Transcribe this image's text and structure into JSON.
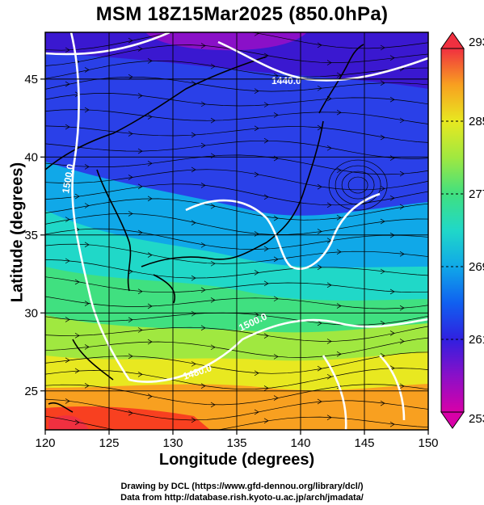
{
  "title": "MSM 18Z15Mar2025 (850.0hPa)",
  "xlabel": "Longitude (degrees)",
  "ylabel": "Latitude  (degrees)",
  "credits": [
    "Drawing by DCL (https://www.gfd-dennou.org/library/dcl/)",
    "Data from http://database.rish.kyoto-u.ac.jp/arch/jmadata/"
  ],
  "map": {
    "lon_range": [
      120,
      150
    ],
    "lat_range": [
      22.5,
      48
    ],
    "lon_ticks": [
      120,
      125,
      130,
      135,
      140,
      145,
      150
    ],
    "lat_ticks": [
      25,
      30,
      35,
      40,
      45
    ],
    "lon_tick_labels": [
      "120",
      "125",
      "130",
      "135",
      "140",
      "145",
      "150"
    ],
    "lat_tick_labels": [
      "25",
      "30",
      "35",
      "40",
      "45"
    ],
    "grid": true
  },
  "fields": {
    "shading": "temperature (K)",
    "streamlines": "wind",
    "contours": "geopotential height (m)"
  },
  "contour_labels": [
    "1440.0",
    "1500.0",
    "1480.0",
    "1500.0"
  ],
  "colorbar": {
    "ticks": [
      "293",
      "285",
      "277",
      "269",
      "261",
      "253"
    ],
    "min": 253,
    "max": 293,
    "colors": [
      "#d800a8",
      "#8a10c8",
      "#3020e0",
      "#1060f0",
      "#10a8e8",
      "#20d8c8",
      "#40e080",
      "#a0e840",
      "#e8e820",
      "#f8a020",
      "#f84020",
      "#f03040"
    ]
  },
  "colors": {
    "contour": "#ffffff",
    "coast": "#000000",
    "streamline": "#000000"
  }
}
